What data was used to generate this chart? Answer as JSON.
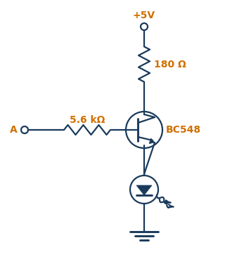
{
  "bg_color": "#ffffff",
  "line_color": "#1a3a5c",
  "text_color_dark": "#1a3a5c",
  "text_color_orange": "#d07000",
  "figsize": [
    3.47,
    3.96
  ],
  "dpi": 100,
  "label_vcc": "+5V",
  "label_180": "180 Ω",
  "label_56k": "5.6 kΩ",
  "label_A": "A",
  "label_bc548": "BC548"
}
